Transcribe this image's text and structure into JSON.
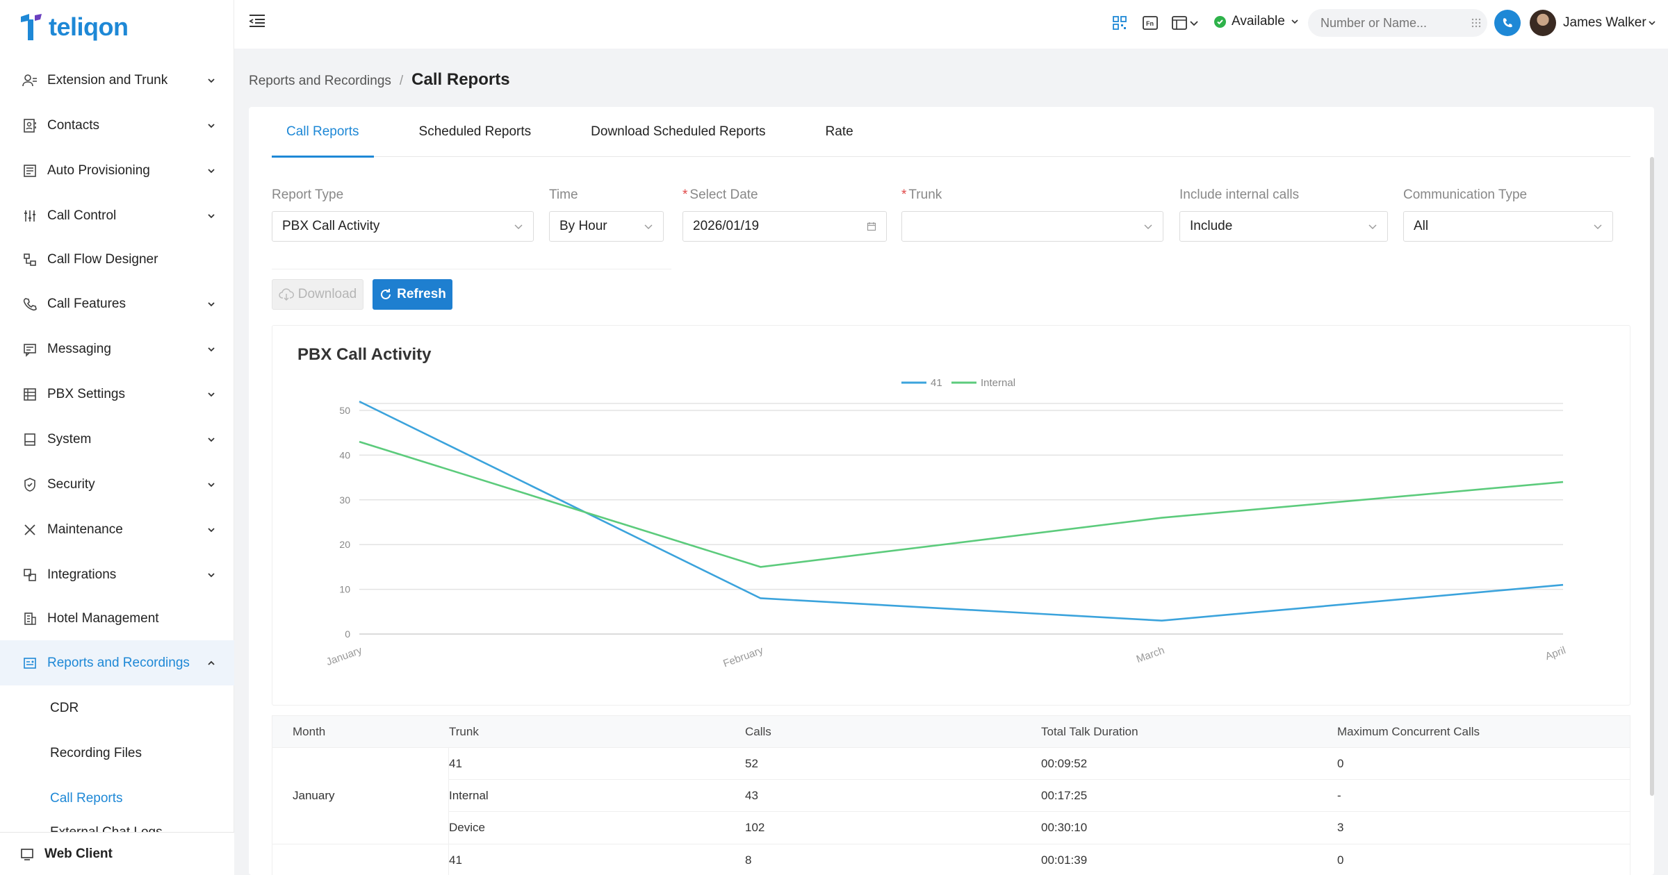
{
  "brand": {
    "name": "teliqon"
  },
  "sidebar": {
    "items": [
      {
        "label": "Extension and Trunk",
        "icon": "user-group-icon",
        "chevron": true
      },
      {
        "label": "Contacts",
        "icon": "contacts-icon",
        "chevron": true
      },
      {
        "label": "Auto Provisioning",
        "icon": "provisioning-icon",
        "chevron": true
      },
      {
        "label": "Call Control",
        "icon": "sliders-icon",
        "chevron": true
      },
      {
        "label": "Call Flow Designer",
        "icon": "flow-icon",
        "chevron": false
      },
      {
        "label": "Call Features",
        "icon": "phone-features-icon",
        "chevron": true
      },
      {
        "label": "Messaging",
        "icon": "messaging-icon",
        "chevron": true
      },
      {
        "label": "PBX Settings",
        "icon": "pbx-settings-icon",
        "chevron": true
      },
      {
        "label": "System",
        "icon": "system-icon",
        "chevron": true
      },
      {
        "label": "Security",
        "icon": "shield-icon",
        "chevron": true
      },
      {
        "label": "Maintenance",
        "icon": "tools-icon",
        "chevron": true
      },
      {
        "label": "Integrations",
        "icon": "integrations-icon",
        "chevron": true
      },
      {
        "label": "Hotel Management",
        "icon": "hotel-icon",
        "chevron": false
      },
      {
        "label": "Reports and Recordings",
        "icon": "reports-icon",
        "chevron": true
      }
    ],
    "subitems": [
      "CDR",
      "Recording Files",
      "Call Reports",
      "External Chat Logs"
    ],
    "web_client": "Web Client"
  },
  "topbar": {
    "status": "Available",
    "search_placeholder": "Number or Name...",
    "user_name": "James Walker"
  },
  "breadcrumb": {
    "parent": "Reports and Recordings",
    "separator": "/",
    "current": "Call Reports"
  },
  "tabs": [
    "Call Reports",
    "Scheduled Reports",
    "Download Scheduled Reports",
    "Rate"
  ],
  "filters": {
    "report_type": {
      "label": "Report Type",
      "value": "PBX Call Activity"
    },
    "time": {
      "label": "Time",
      "value": "By Hour"
    },
    "select_date": {
      "label": "Select Date",
      "value": "2026/01/19",
      "required": true
    },
    "trunk": {
      "label": "Trunk",
      "value": "",
      "required": true
    },
    "include_internal": {
      "label": "Include internal calls",
      "value": "Include"
    },
    "communication_type": {
      "label": "Communication Type",
      "value": "All"
    }
  },
  "buttons": {
    "download": "Download",
    "refresh": "Refresh"
  },
  "colors": {
    "accent": "#1e88d6",
    "series_41": "#3ba3dc",
    "series_internal": "#5ccb7c"
  },
  "chart_data": {
    "type": "line",
    "title": "PBX Call Activity",
    "categories": [
      "January",
      "February",
      "March",
      "April"
    ],
    "series": [
      {
        "name": "41",
        "values": [
          52,
          8,
          3,
          11
        ]
      },
      {
        "name": "Internal",
        "values": [
          43,
          15,
          26,
          34
        ]
      }
    ],
    "ylim": [
      0,
      50
    ],
    "yticks": [
      "0",
      "10",
      "20",
      "30",
      "40",
      "50"
    ],
    "legend": "top-center",
    "grid": true
  },
  "table": {
    "headers": [
      "Month",
      "Trunk",
      "Calls",
      "Total Talk Duration",
      "Maximum Concurrent Calls"
    ],
    "groups": [
      {
        "month": "January",
        "rows": [
          {
            "trunk": "41",
            "calls": "52",
            "duration": "00:09:52",
            "max": "0"
          },
          {
            "trunk": "Internal",
            "calls": "43",
            "duration": "00:17:25",
            "max": "-"
          },
          {
            "trunk": "Device",
            "calls": "102",
            "duration": "00:30:10",
            "max": "3"
          }
        ]
      },
      {
        "month": "",
        "rows": [
          {
            "trunk": "41",
            "calls": "8",
            "duration": "00:01:39",
            "max": "0"
          }
        ]
      }
    ]
  }
}
